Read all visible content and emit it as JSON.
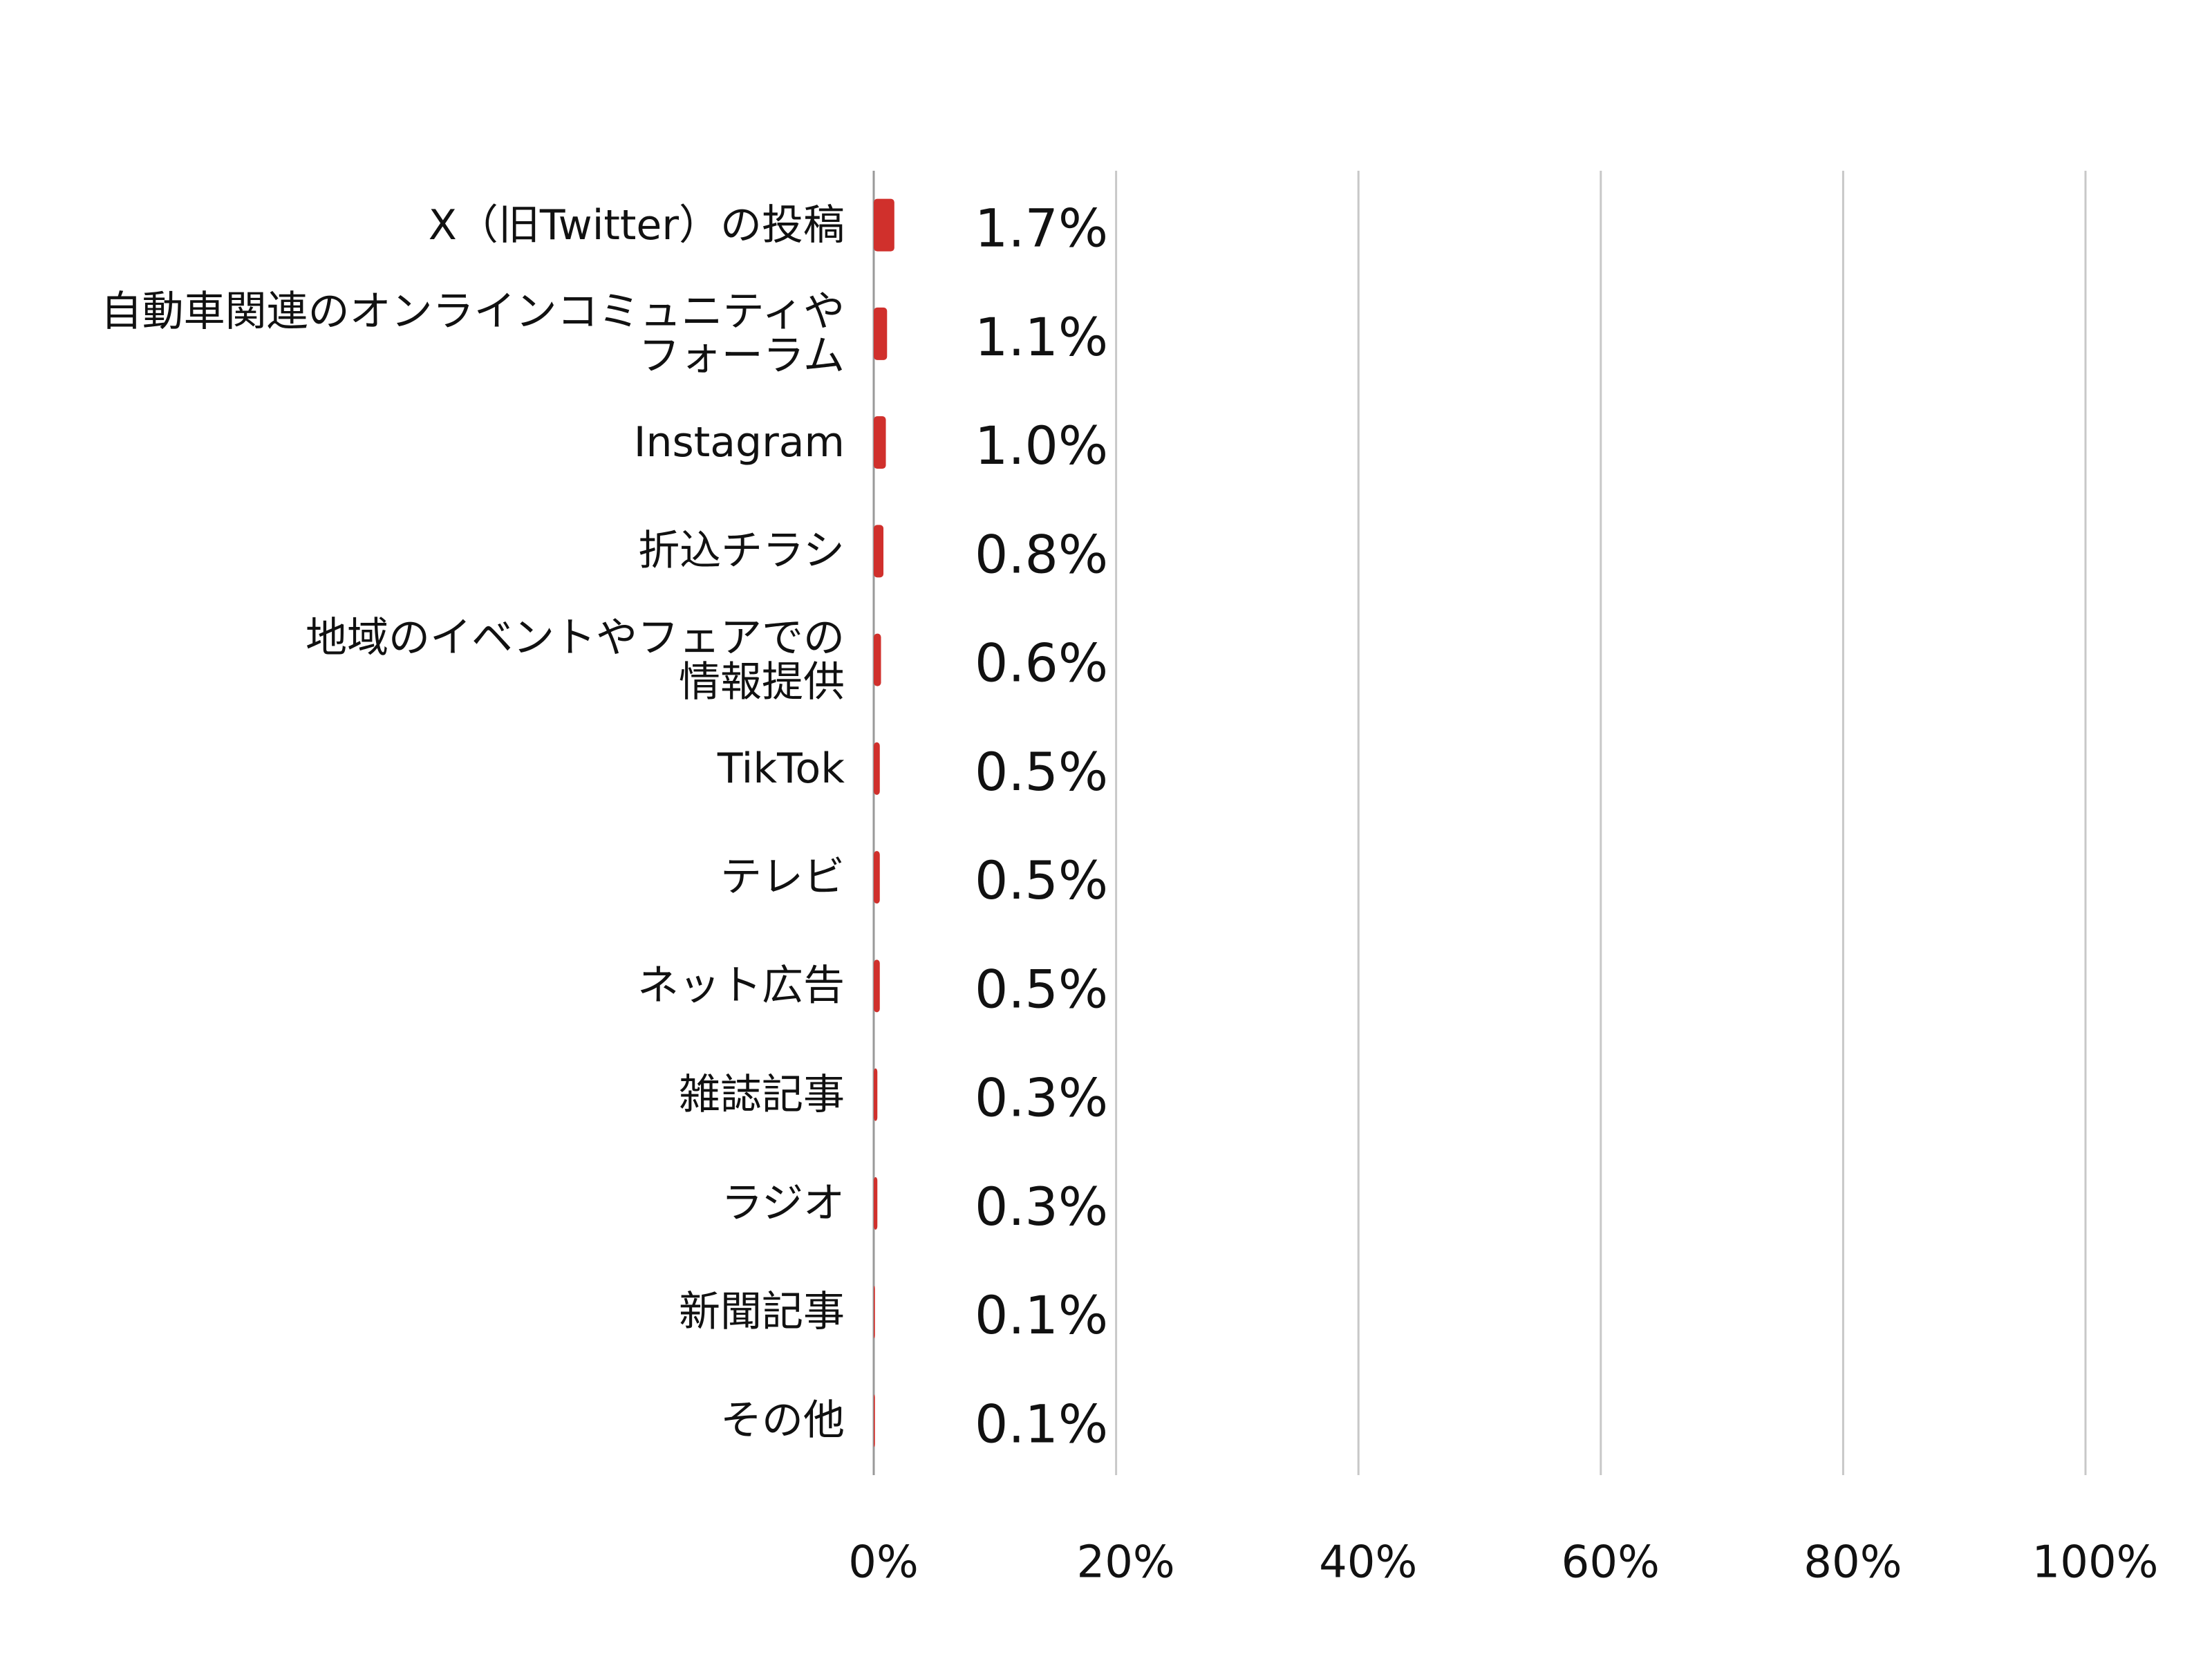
{
  "chart_data": {
    "type": "hbar",
    "categories": [
      "X（旧Twitter）の投稿",
      "自動車関連のオンラインコミュニティや\nフォーラム",
      "Instagram",
      "折込チラシ",
      "地域のイベントやフェアでの\n情報提供",
      "TikTok",
      "テレビ",
      "ネット広告",
      "雑誌記事",
      "ラジオ",
      "新聞記事",
      "その他"
    ],
    "values": [
      1.7,
      1.1,
      1.0,
      0.8,
      0.6,
      0.5,
      0.5,
      0.5,
      0.3,
      0.3,
      0.1,
      0.1
    ],
    "value_labels": [
      "1.7%",
      "1.1%",
      "1.0%",
      "0.8%",
      "0.6%",
      "0.5%",
      "0.5%",
      "0.5%",
      "0.3%",
      "0.3%",
      "0.1%",
      "0.1%"
    ],
    "color": "#d0302c",
    "xlim": [
      0,
      100
    ],
    "xticks": [
      {
        "value": 0,
        "label": "0%"
      },
      {
        "value": 20,
        "label": "20%"
      },
      {
        "value": 40,
        "label": "40%"
      },
      {
        "value": 60,
        "label": "60%"
      },
      {
        "value": 80,
        "label": "80%"
      },
      {
        "value": 100,
        "label": "100%"
      }
    ],
    "grid": true
  }
}
